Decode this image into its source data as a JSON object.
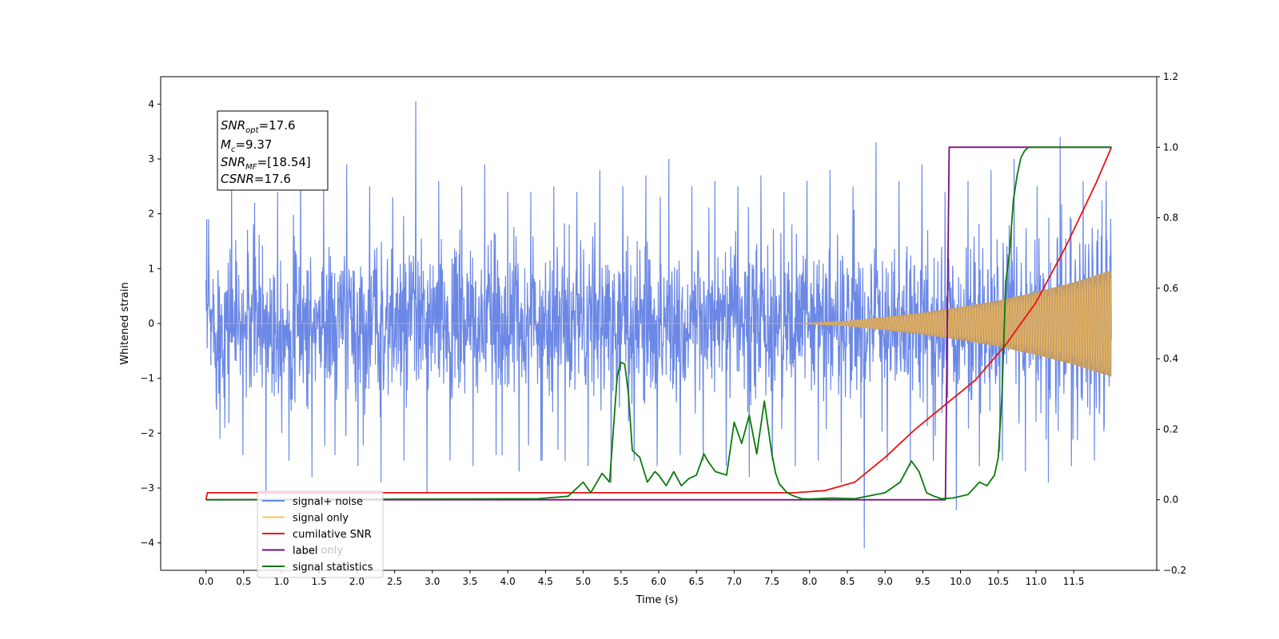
{
  "chart_data": {
    "type": "line",
    "xlabel": "Time (s)",
    "ylabel": "Whitened strain",
    "xlim": [
      -0.6,
      12.6
    ],
    "ylim": [
      -4.5,
      4.5
    ],
    "y2lim": [
      -0.2,
      1.2
    ],
    "x_ticks": [
      "0.0",
      "0.5",
      "1.0",
      "1.5",
      "2.0",
      "2.5",
      "3.0",
      "3.5",
      "4.0",
      "4.5",
      "5.0",
      "5.5",
      "6.0",
      "6.5",
      "7.0",
      "7.5",
      "8.0",
      "8.5",
      "9.0",
      "9.5",
      "10.0",
      "10.5",
      "11.0",
      "11.5"
    ],
    "y_ticks": [
      "−4",
      "−3",
      "−2",
      "−1",
      "0",
      "1",
      "2",
      "3",
      "4"
    ],
    "y2_ticks": [
      "−0.2",
      "0.0",
      "0.2",
      "0.4",
      "0.6",
      "0.8",
      "1.0",
      "1.2"
    ],
    "annotation": {
      "lines": [
        {
          "base": "SNR",
          "sub": "opt",
          "value": "=17.6"
        },
        {
          "base": "M",
          "sub": "c",
          "value": "=9.37"
        },
        {
          "base": "SNR",
          "sub": "MF",
          "value": "=[18.54]"
        },
        {
          "base": "CSNR",
          "sub": "",
          "value": "=17.6"
        }
      ]
    },
    "legend": {
      "placement": "lower-left",
      "entries": [
        {
          "label": "signal+ noise",
          "color": "#6b88e6"
        },
        {
          "label": "signal only",
          "color": "#ffc05c"
        },
        {
          "label": "cumilative SNR",
          "color": "#ee1111"
        },
        {
          "label": "label",
          "color": "#7b0e80"
        },
        {
          "label": "signal statistics",
          "color": "#0a7a0a"
        }
      ],
      "hidden_label": "label only"
    },
    "series": [
      {
        "name": "signal+ noise",
        "axis": "left",
        "color": "#6b88e6",
        "x_range": [
          0,
          12
        ],
        "envelope_max": [
          1.9,
          2.8,
          2.2,
          2.4,
          3.1,
          2.6,
          2.9,
          2.5,
          2.3,
          4.05,
          2.6,
          2.5,
          2.9,
          2.4,
          2.5,
          2.4,
          2.8,
          2.5,
          2.7,
          3.0,
          2.5,
          2.6,
          2.5,
          2.7,
          2.4,
          2.6,
          2.8,
          2.5,
          3.3,
          2.6,
          2.9,
          2.4,
          2.6,
          2.8,
          3.0,
          2.5,
          3.4,
          2.6,
          2.6
        ],
        "envelope_min": [
          -2.1,
          -2.4,
          -3.2,
          -2.5,
          -2.8,
          -2.4,
          -2.6,
          -2.9,
          -2.5,
          -3.1,
          -2.5,
          -2.6,
          -2.4,
          -2.7,
          -2.5,
          -2.5,
          -2.6,
          -2.9,
          -2.5,
          -2.6,
          -2.4,
          -2.5,
          -2.6,
          -2.8,
          -2.5,
          -2.6,
          -2.5,
          -2.9,
          -4.1,
          -2.5,
          -2.6,
          -2.5,
          -3.4,
          -2.6,
          -2.5,
          -2.7,
          -2.9,
          -2.6,
          -2.5
        ]
      },
      {
        "name": "signal only",
        "axis": "left",
        "color": "#ffc05c",
        "x": [
          0,
          7.8,
          8.5,
          9.0,
          9.5,
          10.0,
          10.5,
          11.0,
          11.5,
          12.0
        ],
        "amplitude": [
          0,
          0,
          0.05,
          0.12,
          0.2,
          0.3,
          0.42,
          0.57,
          0.75,
          0.97
        ]
      },
      {
        "name": "cumilative SNR",
        "axis": "right",
        "color": "#ee1111",
        "x": [
          0,
          0.02,
          7.8,
          8.2,
          8.6,
          9.0,
          9.4,
          9.8,
          10.2,
          10.6,
          11.0,
          11.4,
          11.8,
          12.0
        ],
        "y": [
          0.0,
          0.02,
          0.02,
          0.026,
          0.05,
          0.12,
          0.2,
          0.27,
          0.34,
          0.44,
          0.56,
          0.72,
          0.9,
          1.0
        ]
      },
      {
        "name": "label",
        "axis": "right",
        "color": "#7b0e80",
        "x": [
          0,
          9.8,
          9.85,
          12.0
        ],
        "y": [
          0.0,
          0.0,
          1.0,
          1.0
        ]
      },
      {
        "name": "signal statistics",
        "axis": "right",
        "color": "#0a7a0a",
        "x": [
          0,
          4.4,
          4.8,
          5.0,
          5.1,
          5.25,
          5.35,
          5.45,
          5.5,
          5.55,
          5.6,
          5.65,
          5.75,
          5.85,
          5.95,
          6.0,
          6.1,
          6.2,
          6.3,
          6.4,
          6.5,
          6.6,
          6.65,
          6.75,
          6.9,
          7.0,
          7.1,
          7.2,
          7.3,
          7.4,
          7.5,
          7.55,
          7.6,
          7.7,
          7.8,
          7.9,
          8.0,
          8.3,
          8.6,
          9.0,
          9.2,
          9.35,
          9.45,
          9.55,
          9.65,
          9.75,
          9.9,
          10.1,
          10.25,
          10.35,
          10.45,
          10.5,
          10.55,
          10.6,
          10.65,
          10.7,
          10.75,
          10.8,
          10.85,
          10.9,
          10.95,
          11.0,
          11.1,
          11.3,
          12.0
        ],
        "y": [
          0.0,
          0.003,
          0.01,
          0.05,
          0.02,
          0.075,
          0.05,
          0.35,
          0.39,
          0.385,
          0.3,
          0.14,
          0.12,
          0.05,
          0.08,
          0.07,
          0.04,
          0.08,
          0.04,
          0.06,
          0.07,
          0.13,
          0.11,
          0.08,
          0.07,
          0.22,
          0.16,
          0.24,
          0.13,
          0.28,
          0.13,
          0.075,
          0.045,
          0.02,
          0.01,
          0.003,
          0.002,
          0.005,
          0.003,
          0.02,
          0.05,
          0.11,
          0.08,
          0.02,
          0.01,
          0.003,
          0.005,
          0.015,
          0.05,
          0.04,
          0.07,
          0.12,
          0.3,
          0.62,
          0.7,
          0.85,
          0.92,
          0.97,
          0.99,
          1.0,
          1.0,
          1.0,
          1.0,
          1.0,
          1.0
        ]
      }
    ]
  }
}
